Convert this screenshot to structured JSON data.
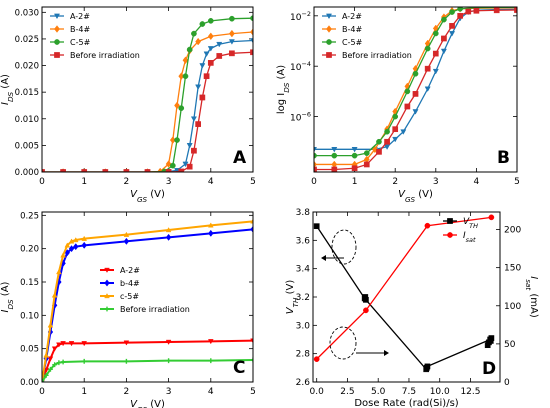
{
  "chart_data": [
    {
      "id": "A",
      "type": "line",
      "panel_letter": "A",
      "xlabel_main": "V",
      "xlabel_sub": "GS",
      "xlabel_unit": " (V)",
      "ylabel_main": "I",
      "ylabel_sub": "DS",
      "ylabel_unit": " (A)",
      "xlim": [
        0,
        5
      ],
      "ylim": [
        0,
        0.031
      ],
      "yscale": "linear",
      "xticks": [
        0,
        1,
        2,
        3,
        4,
        5
      ],
      "xtick_labels": [
        "0",
        "1",
        "2",
        "3",
        "4",
        "5"
      ],
      "yticks": [
        0,
        0.005,
        0.01,
        0.015,
        0.02,
        0.025,
        0.03
      ],
      "ytick_labels": [
        "0.000",
        "0.005",
        "0.010",
        "0.015",
        "0.020",
        "0.025",
        "0.030"
      ],
      "legend_position": "top-left",
      "series": [
        {
          "name": "A-2#",
          "color": "#1f77b4",
          "marker": "triangle-down",
          "points": [
            [
              0,
              0
            ],
            [
              0.5,
              0
            ],
            [
              1,
              0
            ],
            [
              1.5,
              0
            ],
            [
              2,
              0
            ],
            [
              2.5,
              0
            ],
            [
              3,
              0.0001
            ],
            [
              3.2,
              0.0003
            ],
            [
              3.4,
              0.0015
            ],
            [
              3.5,
              0.005
            ],
            [
              3.6,
              0.01
            ],
            [
              3.7,
              0.016
            ],
            [
              3.8,
              0.02
            ],
            [
              3.9,
              0.0222
            ],
            [
              4.0,
              0.0232
            ],
            [
              4.2,
              0.024
            ],
            [
              4.5,
              0.0245
            ],
            [
              5,
              0.0247
            ]
          ]
        },
        {
          "name": "B-4#",
          "color": "#ff7f0e",
          "marker": "diamond",
          "points": [
            [
              0,
              0
            ],
            [
              0.5,
              0
            ],
            [
              1,
              0
            ],
            [
              1.5,
              0
            ],
            [
              2,
              0
            ],
            [
              2.5,
              0
            ],
            [
              2.8,
              0.0001
            ],
            [
              3.0,
              0.0015
            ],
            [
              3.1,
              0.006
            ],
            [
              3.2,
              0.0125
            ],
            [
              3.3,
              0.018
            ],
            [
              3.4,
              0.021
            ],
            [
              3.5,
              0.0228
            ],
            [
              3.7,
              0.0245
            ],
            [
              4.0,
              0.0255
            ],
            [
              4.5,
              0.026
            ],
            [
              5,
              0.0263
            ]
          ]
        },
        {
          "name": "C-5#",
          "color": "#2ca02c",
          "marker": "circle",
          "points": [
            [
              0,
              0
            ],
            [
              0.5,
              0
            ],
            [
              1,
              0
            ],
            [
              1.5,
              0
            ],
            [
              2,
              0
            ],
            [
              2.5,
              0
            ],
            [
              2.9,
              0.0001
            ],
            [
              3.1,
              0.0012
            ],
            [
              3.2,
              0.006
            ],
            [
              3.3,
              0.012
            ],
            [
              3.4,
              0.018
            ],
            [
              3.5,
              0.023
            ],
            [
              3.6,
              0.026
            ],
            [
              3.8,
              0.0278
            ],
            [
              4.0,
              0.0284
            ],
            [
              4.5,
              0.0288
            ],
            [
              5,
              0.0289
            ]
          ]
        },
        {
          "name": "Before irradiation",
          "color": "#d62728",
          "marker": "square",
          "points": [
            [
              0,
              0
            ],
            [
              0.5,
              0
            ],
            [
              1,
              0
            ],
            [
              1.5,
              0
            ],
            [
              2,
              0
            ],
            [
              2.5,
              0
            ],
            [
              3,
              0
            ],
            [
              3.3,
              0.0001
            ],
            [
              3.5,
              0.001
            ],
            [
              3.6,
              0.004
            ],
            [
              3.7,
              0.009
            ],
            [
              3.8,
              0.014
            ],
            [
              3.9,
              0.018
            ],
            [
              4.0,
              0.0205
            ],
            [
              4.2,
              0.0218
            ],
            [
              4.5,
              0.0223
            ],
            [
              5,
              0.0225
            ]
          ]
        }
      ]
    },
    {
      "id": "B",
      "type": "line",
      "panel_letter": "B",
      "xlabel_main": "V",
      "xlabel_sub": "GS",
      "xlabel_unit": " (V)",
      "ylabel_main": "log I",
      "ylabel_sub": "DS",
      "ylabel_unit": " (A)",
      "xlim": [
        0,
        5
      ],
      "ylim_log10": [
        -8.2,
        -1.65
      ],
      "yscale": "log",
      "xticks": [
        0,
        1,
        2,
        3,
        4,
        5
      ],
      "xtick_labels": [
        "0",
        "1",
        "2",
        "3",
        "4",
        "5"
      ],
      "yticks_log10": [
        -6,
        -4,
        -2
      ],
      "ytick_labels_base": [
        "10",
        "10",
        "10"
      ],
      "ytick_labels_exp": [
        "−6",
        "−4",
        "−2"
      ],
      "legend_position": "top-left",
      "series": [
        {
          "name": "A-2#",
          "color": "#1f77b4",
          "marker": "triangle-down",
          "points": [
            [
              0,
              -7.3
            ],
            [
              0.5,
              -7.3
            ],
            [
              1,
              -7.3
            ],
            [
              1.5,
              -7.3
            ],
            [
              1.8,
              -7.2
            ],
            [
              2.0,
              -6.9
            ],
            [
              2.2,
              -6.6
            ],
            [
              2.5,
              -5.8
            ],
            [
              2.8,
              -4.9
            ],
            [
              3.0,
              -4.2
            ],
            [
              3.2,
              -3.4
            ],
            [
              3.4,
              -2.7
            ],
            [
              3.6,
              -2.1
            ],
            [
              3.8,
              -1.85
            ],
            [
              4.0,
              -1.78
            ],
            [
              4.5,
              -1.75
            ],
            [
              5,
              -1.74
            ]
          ]
        },
        {
          "name": "B-4#",
          "color": "#ff7f0e",
          "marker": "diamond",
          "points": [
            [
              0,
              -7.9
            ],
            [
              0.5,
              -7.9
            ],
            [
              1,
              -7.9
            ],
            [
              1.3,
              -7.7
            ],
            [
              1.5,
              -7.3
            ],
            [
              1.8,
              -6.5
            ],
            [
              2.0,
              -5.8
            ],
            [
              2.3,
              -4.8
            ],
            [
              2.5,
              -4.1
            ],
            [
              2.8,
              -3.1
            ],
            [
              3.0,
              -2.5
            ],
            [
              3.2,
              -2.05
            ],
            [
              3.4,
              -1.8
            ],
            [
              3.6,
              -1.72
            ],
            [
              4.0,
              -1.7
            ],
            [
              5,
              -1.68
            ]
          ]
        },
        {
          "name": "C-5#",
          "color": "#2ca02c",
          "marker": "circle",
          "points": [
            [
              0,
              -7.55
            ],
            [
              0.5,
              -7.55
            ],
            [
              1,
              -7.55
            ],
            [
              1.3,
              -7.45
            ],
            [
              1.6,
              -7.0
            ],
            [
              1.8,
              -6.6
            ],
            [
              2.0,
              -6.0
            ],
            [
              2.3,
              -5.0
            ],
            [
              2.5,
              -4.3
            ],
            [
              2.8,
              -3.3
            ],
            [
              3.0,
              -2.7
            ],
            [
              3.2,
              -2.15
            ],
            [
              3.4,
              -1.85
            ],
            [
              3.6,
              -1.72
            ],
            [
              4.0,
              -1.68
            ],
            [
              5,
              -1.66
            ]
          ]
        },
        {
          "name": "Before irradiation",
          "color": "#d62728",
          "marker": "square",
          "points": [
            [
              0,
              -8.1
            ],
            [
              0.5,
              -8.1
            ],
            [
              1,
              -8.05
            ],
            [
              1.3,
              -7.9
            ],
            [
              1.6,
              -7.4
            ],
            [
              1.8,
              -7.0
            ],
            [
              2.0,
              -6.5
            ],
            [
              2.3,
              -5.6
            ],
            [
              2.5,
              -5.1
            ],
            [
              2.8,
              -4.1
            ],
            [
              3.0,
              -3.5
            ],
            [
              3.2,
              -2.9
            ],
            [
              3.4,
              -2.4
            ],
            [
              3.6,
              -2.0
            ],
            [
              3.8,
              -1.83
            ],
            [
              4.0,
              -1.8
            ],
            [
              4.5,
              -1.78
            ],
            [
              5,
              -1.77
            ]
          ]
        }
      ]
    },
    {
      "id": "C",
      "type": "line",
      "panel_letter": "C",
      "xlabel_main": "V",
      "xlabel_sub": "GS",
      "xlabel_unit": " (V)",
      "ylabel_main": "I",
      "ylabel_sub": "DS",
      "ylabel_unit": " (A)",
      "xlim": [
        0,
        5
      ],
      "ylim": [
        0,
        0.255
      ],
      "yscale": "linear",
      "xticks": [
        0,
        1,
        2,
        3,
        4,
        5
      ],
      "xtick_labels": [
        "0",
        "1",
        "2",
        "3",
        "4",
        "5"
      ],
      "yticks": [
        0,
        0.05,
        0.1,
        0.15,
        0.2,
        0.25
      ],
      "ytick_labels": [
        "0.00",
        "0.05",
        "0.10",
        "0.15",
        "0.20",
        "0.25"
      ],
      "legend_position": "center-right",
      "series": [
        {
          "name": "A-2#",
          "color": "#ff0000",
          "marker": "triangle-down",
          "points": [
            [
              0,
              0
            ],
            [
              0.1,
              0.018
            ],
            [
              0.2,
              0.035
            ],
            [
              0.3,
              0.05
            ],
            [
              0.4,
              0.056
            ],
            [
              0.5,
              0.058
            ],
            [
              0.7,
              0.058
            ],
            [
              1,
              0.058
            ],
            [
              2,
              0.059
            ],
            [
              3,
              0.06
            ],
            [
              4,
              0.061
            ],
            [
              5,
              0.062
            ]
          ]
        },
        {
          "name": "b-4#",
          "color": "#0000ff",
          "marker": "diamond",
          "points": [
            [
              0,
              0
            ],
            [
              0.1,
              0.035
            ],
            [
              0.2,
              0.075
            ],
            [
              0.3,
              0.115
            ],
            [
              0.4,
              0.15
            ],
            [
              0.5,
              0.178
            ],
            [
              0.6,
              0.194
            ],
            [
              0.7,
              0.2
            ],
            [
              0.8,
              0.203
            ],
            [
              1,
              0.205
            ],
            [
              2,
              0.211
            ],
            [
              3,
              0.217
            ],
            [
              4,
              0.223
            ],
            [
              5,
              0.229
            ]
          ]
        },
        {
          "name": "c-5#",
          "color": "#ffa500",
          "marker": "triangle-up",
          "points": [
            [
              0,
              0
            ],
            [
              0.1,
              0.04
            ],
            [
              0.2,
              0.085
            ],
            [
              0.3,
              0.13
            ],
            [
              0.4,
              0.165
            ],
            [
              0.5,
              0.19
            ],
            [
              0.6,
              0.205
            ],
            [
              0.7,
              0.211
            ],
            [
              0.8,
              0.213
            ],
            [
              1,
              0.215
            ],
            [
              2,
              0.221
            ],
            [
              3,
              0.228
            ],
            [
              4,
              0.235
            ],
            [
              5,
              0.241
            ]
          ]
        },
        {
          "name": "Before irradiation",
          "color": "#33cc33",
          "marker": "plus",
          "points": [
            [
              0,
              0
            ],
            [
              0.1,
              0.01
            ],
            [
              0.2,
              0.019
            ],
            [
              0.3,
              0.026
            ],
            [
              0.4,
              0.029
            ],
            [
              0.5,
              0.03
            ],
            [
              1,
              0.031
            ],
            [
              2,
              0.031
            ],
            [
              3,
              0.032
            ],
            [
              4,
              0.032
            ],
            [
              5,
              0.033
            ]
          ]
        }
      ]
    },
    {
      "id": "D",
      "type": "line",
      "panel_letter": "D",
      "xlabel": "Dose Rate (rad(Si)/s)",
      "ylabel_left_main": "V",
      "ylabel_left_sub": "TH",
      "ylabel_left_unit": " (V)",
      "ylabel_right_main": "I",
      "ylabel_right_sub": "sat",
      "ylabel_right_unit": " (mA)",
      "xlim": [
        -0.3,
        14.9
      ],
      "ylim_left": [
        2.6,
        3.8
      ],
      "ylim_right": [
        0,
        223
      ],
      "xticks": [
        0,
        2.5,
        5,
        7.5,
        10,
        12.5
      ],
      "xtick_labels": [
        "0.0",
        "2.5",
        "5.0",
        "7.5",
        "10.0",
        "12.5"
      ],
      "yticks_left": [
        2.6,
        2.8,
        3.0,
        3.2,
        3.4,
        3.6,
        3.8
      ],
      "ytick_labels_left": [
        "2.6",
        "2.8",
        "3.0",
        "3.2",
        "3.4",
        "3.6",
        "3.8"
      ],
      "yticks_right": [
        0,
        50,
        100,
        150,
        200
      ],
      "ytick_labels_right": [
        "0",
        "50",
        "100",
        "150",
        "200"
      ],
      "legend_position": "top-right",
      "series": [
        {
          "name_main": "V",
          "name_sub": "TH",
          "color": "#000000",
          "marker": "square",
          "axis": "left",
          "points": [
            [
              0,
              3.7
            ],
            [
              3.9,
              3.19
            ],
            [
              3.95,
              3.2
            ],
            [
              4.0,
              3.18
            ],
            [
              8.9,
              2.69
            ],
            [
              8.95,
              2.7
            ],
            [
              9.0,
              2.71
            ],
            [
              14.1,
              2.9
            ],
            [
              14.15,
              2.89
            ],
            [
              14.2,
              2.91
            ]
          ],
          "extra_points": [
            [
              13.9,
              2.86
            ],
            [
              14.0,
              2.88
            ]
          ]
        },
        {
          "name_main": "I",
          "name_sub": "sat",
          "color": "#ff0000",
          "marker": "circle",
          "axis": "right",
          "points": [
            [
              0,
              30
            ],
            [
              4.0,
              94
            ],
            [
              9.0,
              205
            ],
            [
              14.2,
              216
            ]
          ]
        }
      ]
    }
  ]
}
